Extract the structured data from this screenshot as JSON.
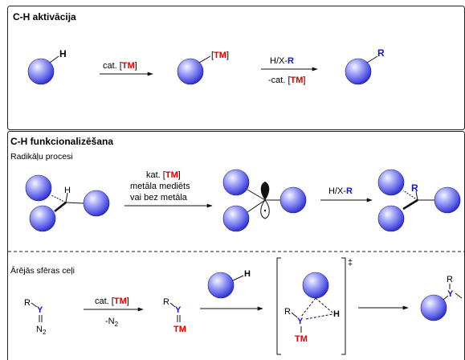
{
  "colors": {
    "tm_red": "#e00000",
    "r_blue": "#1515cc",
    "y_blue": "#1515cc",
    "sphere_light": "#eef0ff",
    "sphere_mid": "#7b7ff5",
    "sphere_dark": "#2f30c8",
    "stroke": "#111111"
  },
  "top_panel": {
    "title": "C-H aktivācija",
    "h1": "H",
    "arrow1_label_prefix": "cat. [",
    "arrow1_label_tm": "TM",
    "arrow1_label_suffix": "]",
    "tm_bracket_open": "[",
    "tm_text": "TM",
    "tm_bracket_close": "]",
    "arrow2_top_prefix": "H/X-",
    "arrow2_top_r": "R",
    "arrow2_bottom_prefix": "-cat. [",
    "arrow2_bottom_tm": "TM",
    "arrow2_bottom_suffix": "]",
    "product_r": "R"
  },
  "bottom_panel": {
    "title": "C-H funkcionalizēšana",
    "section1_label": "Radikāļu procesi",
    "radical_h": "H",
    "radical_arrow_line1_prefix": "kat. [",
    "radical_arrow_line1_tm": "TM",
    "radical_arrow_line1_suffix": "]",
    "radical_arrow_line2": "metāla mediēts",
    "radical_arrow_line3": "vai bez metāla",
    "radical_arrow2_prefix": "H/X-",
    "radical_arrow2_r": "R",
    "radical_product_r": "R",
    "section2_label": "Ārējās sfēras ceļi",
    "diazo_r": "R",
    "diazo_y": "Y",
    "diazo_eq": "||",
    "diazo_n2": "N",
    "diazo_n2_sub": "2",
    "carbene_arrow_prefix": "cat. [",
    "carbene_arrow_tm": "TM",
    "carbene_arrow_suffix": "]",
    "carbene_arrow_bottom": "-N",
    "carbene_arrow_bottom_sub": "2",
    "carbene_r": "R",
    "carbene_y": "Y",
    "carbene_eq": "||",
    "carbene_tm": "TM",
    "substrate_h": "H",
    "ts_dagger": "‡",
    "ts_r": "R",
    "ts_y": "Y",
    "ts_h": "H",
    "ts_tm": "TM",
    "final_r": "R",
    "final_y": "Y"
  }
}
